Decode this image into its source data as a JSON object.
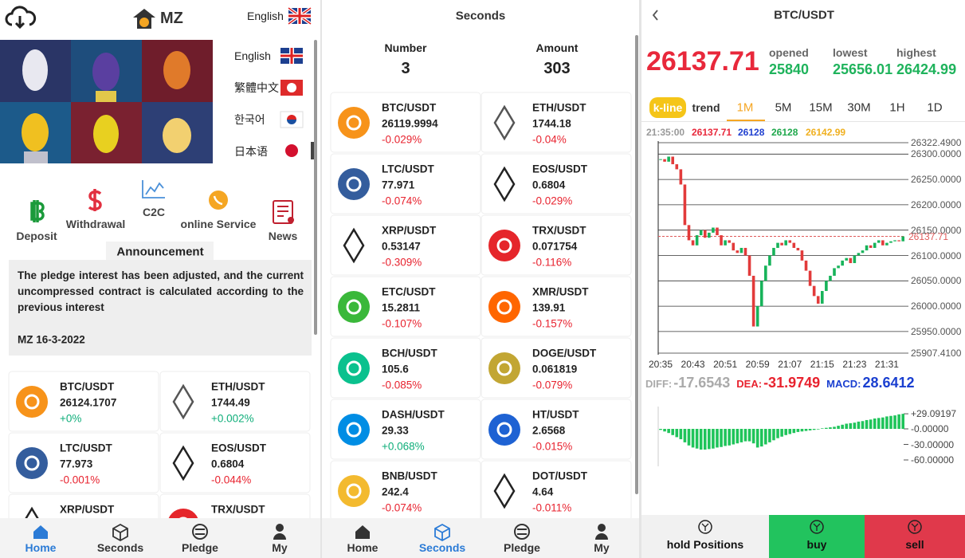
{
  "left": {
    "logo": "MZ",
    "language": "English",
    "languages": [
      "English",
      "繁體中文",
      "한국어",
      "日本语"
    ],
    "actions": [
      "Deposit",
      "Withdrawal",
      "C2C",
      "online Service",
      "News"
    ],
    "announcement": {
      "title": "Announcement",
      "text": "The pledge interest has been adjusted, and the current uncompressed contract is calculated according to the previous interest",
      "date": "MZ 16-3-2022"
    },
    "markets": [
      {
        "pair": "BTC/USDT",
        "price": 26124.1707,
        "change": "+0%"
      },
      {
        "pair": "ETH/USDT",
        "price": 1744.49,
        "change": "+0.002%"
      },
      {
        "pair": "LTC/USDT",
        "price": 77.973,
        "change": "-0.001%"
      },
      {
        "pair": "EOS/USDT",
        "price": 0.6804,
        "change": "-0.044%"
      },
      {
        "pair": "XRP/USDT"
      },
      {
        "pair": "TRX/USDT"
      }
    ]
  },
  "tabbar": [
    "Home",
    "Seconds",
    "Pledge",
    "My"
  ],
  "seconds": {
    "title": "Seconds",
    "number_label": "Number",
    "number": 3,
    "amount_label": "Amount",
    "amount": 303,
    "markets": [
      {
        "pair": "BTC/USDT",
        "price": 26119.9994,
        "change": "-0.029%"
      },
      {
        "pair": "ETH/USDT",
        "price": 1744.18,
        "change": "-0.04%"
      },
      {
        "pair": "LTC/USDT",
        "price": 77.971,
        "change": "-0.074%"
      },
      {
        "pair": "EOS/USDT",
        "price": 0.6804,
        "change": "-0.029%"
      },
      {
        "pair": "XRP/USDT",
        "price": 0.53147,
        "change": "-0.309%"
      },
      {
        "pair": "TRX/USDT",
        "price": 0.071754,
        "change": "-0.116%"
      },
      {
        "pair": "ETC/USDT",
        "price": 15.2811,
        "change": "-0.107%"
      },
      {
        "pair": "XMR/USDT",
        "price": 139.91,
        "change": "-0.157%"
      },
      {
        "pair": "BCH/USDT",
        "price": 105.6,
        "change": "-0.085%"
      },
      {
        "pair": "DOGE/USDT",
        "price": 0.061819,
        "change": "-0.079%"
      },
      {
        "pair": "DASH/USDT",
        "price": 29.33,
        "change": "+0.068%"
      },
      {
        "pair": "HT/USDT",
        "price": 2.6568,
        "change": "-0.015%"
      },
      {
        "pair": "BNB/USDT",
        "price": 242.4,
        "change": "-0.074%"
      },
      {
        "pair": "DOT/USDT",
        "price": 4.64,
        "change": "-0.011%"
      }
    ]
  },
  "kline": {
    "title": "BTC/USDT",
    "price": 26137.71,
    "opened_label": "opened",
    "opened": 25840,
    "lowest_label": "lowest",
    "lowest": 25656.01,
    "highest_label": "highest",
    "highest": 26424.99,
    "tabs": [
      "k-line",
      "trend",
      "1M",
      "5M",
      "15M",
      "30M",
      "1H",
      "1D"
    ],
    "info": [
      "21:35:00",
      26137.71,
      26128,
      26128,
      26142.99
    ],
    "chart": {
      "type": "candlestick",
      "ylim": [
        25907.41,
        26322.49
      ],
      "yticks": [
        {
          "value": 26322.49,
          "label": "26322.4900"
        },
        {
          "value": 26300,
          "label": "26300.0000"
        },
        {
          "value": 26250,
          "label": "26250.0000"
        },
        {
          "value": 26200,
          "label": "26200.0000"
        },
        {
          "value": 26150,
          "label": "26150.0000"
        },
        {
          "value": 26100,
          "label": "26100.0000"
        },
        {
          "value": 26050,
          "label": "26050.0000"
        },
        {
          "value": 26000,
          "label": "26000.0000"
        },
        {
          "value": 25950,
          "label": "25950.0000"
        },
        {
          "value": 25907.41,
          "label": "25907.4100"
        }
      ],
      "last": {
        "value": 26137.71,
        "label": "26137.71"
      },
      "x": [
        "20:35",
        null,
        null,
        null,
        null,
        null,
        null,
        null,
        "20:43",
        null,
        null,
        null,
        null,
        null,
        null,
        null,
        "20:51",
        null,
        null,
        null,
        null,
        null,
        null,
        null,
        "20:59",
        null,
        null,
        null,
        null,
        null,
        null,
        null,
        "21:07",
        null,
        null,
        null,
        null,
        null,
        null,
        null,
        "21:15",
        null,
        null,
        null,
        null,
        null,
        null,
        null,
        "21:23",
        null,
        null,
        null,
        null,
        null,
        null,
        null,
        "21:31",
        null,
        null,
        null,
        null
      ],
      "close": [
        26290,
        26285,
        26295,
        26280,
        26270,
        26240,
        26160,
        26130,
        26120,
        26140,
        26150,
        26135,
        26145,
        26155,
        26140,
        26120,
        26130,
        26125,
        26110,
        26105,
        26115,
        26100,
        26060,
        25960,
        26000,
        26050,
        26080,
        26100,
        26115,
        26125,
        26120,
        26130,
        26125,
        26115,
        26110,
        26090,
        26070,
        26040,
        26020,
        26005,
        26030,
        26050,
        26060,
        26075,
        26080,
        26090,
        26095,
        26085,
        26100,
        26105,
        26110,
        26120,
        26115,
        26125,
        26130,
        26120,
        26125,
        26128,
        26130,
        26128,
        26137.71
      ],
      "up_color": "#17b35a",
      "down_color": "#e23b3b"
    },
    "diff_label": "DIFF:",
    "diff": -17.6543,
    "dea_label": "DEA:",
    "dea": -31.9749,
    "macd_label": "MACD:",
    "macd": 28.6412,
    "macd_chart": {
      "type": "bar",
      "ylim": [
        -80,
        60
      ],
      "yticks": [
        {
          "value": 29.09197,
          "label": "+29.09197"
        },
        {
          "value": 0,
          "label": "-0.00000"
        },
        {
          "value": -30,
          "label": "-30.00000"
        },
        {
          "value": -60,
          "label": "-60.00000"
        }
      ],
      "values": [
        -2,
        -5,
        -8,
        -12,
        -16,
        -20,
        -26,
        -32,
        -36,
        -38,
        -40,
        -40,
        -39,
        -38,
        -36,
        -35,
        -33,
        -32,
        -30,
        -28,
        -26,
        -24,
        -24,
        -28,
        -36,
        -34,
        -30,
        -26,
        -22,
        -18,
        -15,
        -12,
        -10,
        -8,
        -6,
        -5,
        -4,
        -3,
        -2,
        -1,
        1,
        2,
        3,
        4,
        6,
        8,
        10,
        11,
        12,
        14,
        15,
        17,
        18,
        20,
        21,
        22,
        24,
        25,
        26,
        28,
        29
      ],
      "color": "#1fc45a"
    },
    "buttons": [
      "hold Positions",
      "buy",
      "sell"
    ]
  }
}
